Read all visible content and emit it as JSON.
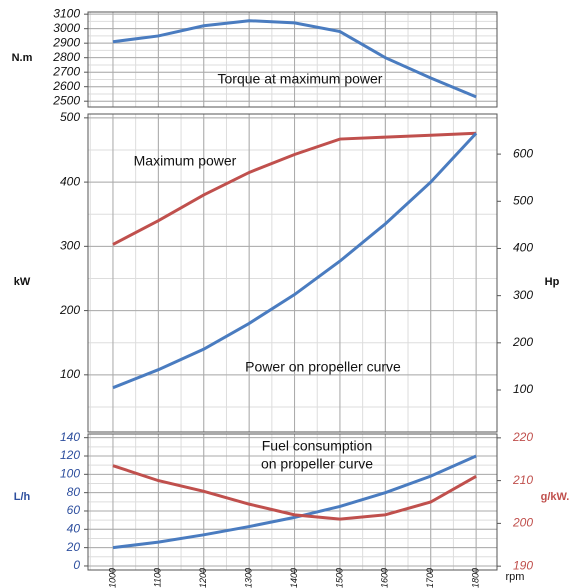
{
  "chart_data": [
    {
      "type": "line",
      "ylabel": "N.m",
      "x": [
        1000,
        1100,
        1200,
        1300,
        1400,
        1500,
        1600,
        1700,
        1800
      ],
      "xlim": [
        945,
        1846
      ],
      "ylim": [
        2460,
        3115
      ],
      "yticks": [
        2500,
        2600,
        2700,
        2800,
        2900,
        3000,
        3100
      ],
      "grid": true,
      "series": [
        {
          "name": "Torque at maximum power",
          "color": "#4a7cc0",
          "values": [
            2910,
            2950,
            3020,
            3055,
            3040,
            2980,
            2800,
            2660,
            2530
          ]
        }
      ]
    },
    {
      "type": "line",
      "ylabel": "kW",
      "y2label": "Hp",
      "x": [
        1000,
        1100,
        1200,
        1300,
        1400,
        1500,
        1600,
        1700,
        1800
      ],
      "xlim": [
        945,
        1846
      ],
      "ylim": [
        11,
        506
      ],
      "yticks": [
        100,
        200,
        300,
        400,
        500
      ],
      "y2lim": [
        11,
        685
      ],
      "y2ticks": [
        100,
        200,
        300,
        400,
        500,
        600
      ],
      "grid": true,
      "series": [
        {
          "name": "Maximum power",
          "color": "#c0504d",
          "values": [
            303,
            340,
            380,
            415,
            443,
            467,
            470,
            473,
            476
          ]
        },
        {
          "name": "Power on propeller curve",
          "color": "#4a7cc0",
          "values": [
            80,
            108,
            140,
            180,
            225,
            277,
            335,
            400,
            476
          ]
        }
      ]
    },
    {
      "type": "line",
      "ylabel": "L/h",
      "y2label": "g/kW.",
      "xlabel": "rpm",
      "annotation": [
        "Fuel consumption",
        "on propeller curve"
      ],
      "x": [
        1000,
        1100,
        1200,
        1300,
        1400,
        1500,
        1600,
        1700,
        1800
      ],
      "xlim": [
        945,
        1846
      ],
      "xticks": [
        1000,
        1100,
        1200,
        1300,
        1400,
        1500,
        1600,
        1700,
        1800
      ],
      "ylim": [
        -4.4,
        144
      ],
      "yticks": [
        0,
        20,
        40,
        60,
        80,
        100,
        120,
        140
      ],
      "y2lim": [
        189.1,
        220.9
      ],
      "y2ticks": [
        190,
        200,
        210,
        220
      ],
      "ycolor": "#2e4f9e",
      "y2color": "#c0504d",
      "grid": true,
      "series": [
        {
          "color": "#4a7cc0",
          "values": [
            20,
            26,
            34,
            43,
            53,
            65,
            80,
            98,
            120
          ]
        },
        {
          "color": "#c0504d",
          "axis": "y2",
          "values": [
            213.5,
            210,
            207.5,
            204.5,
            202,
            201,
            202,
            205,
            211
          ]
        }
      ]
    }
  ]
}
